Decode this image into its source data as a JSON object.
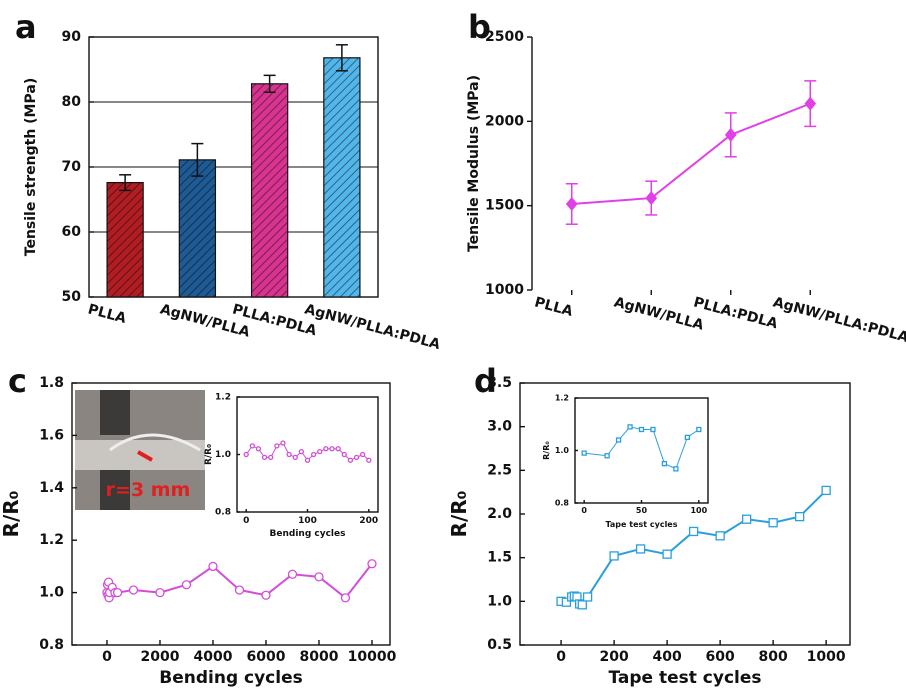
{
  "chart_data": [
    {
      "type": "bar",
      "panel_label": "a",
      "ylabel": "Tensile strength (MPa)",
      "categories": [
        "PLLA",
        "AgNW/PLLA",
        "PLLA:PDLA",
        "AgNW/PLLA:PDLA"
      ],
      "values": [
        67.6,
        71.1,
        82.8,
        86.8
      ],
      "errors": [
        1.2,
        2.5,
        1.3,
        2.0
      ],
      "colors": [
        "#b01e23",
        "#1e5a94",
        "#d8348f",
        "#52b6ea"
      ],
      "ylim": [
        50,
        90
      ],
      "yticks": [
        50,
        60,
        70,
        80,
        90
      ],
      "grid": true
    },
    {
      "type": "line",
      "panel_label": "b",
      "ylabel": "Tensile Modulus (MPa)",
      "categories": [
        "PLLA",
        "AgNW/PLLA",
        "PLLA:PDLA",
        "AgNW/PLLA:PDLA"
      ],
      "values": [
        1510,
        1545,
        1920,
        2105
      ],
      "errors": [
        120,
        100,
        130,
        135
      ],
      "color": "#e040e6",
      "marker": "diamond",
      "ylim": [
        1000,
        2500
      ],
      "yticks": [
        1000,
        1500,
        2000,
        2500
      ]
    },
    {
      "type": "line",
      "panel_label": "c",
      "ylabel": "R/R₀",
      "xlabel": "Bending cycles",
      "annotation": "r=3 mm",
      "x": [
        0,
        20,
        40,
        60,
        80,
        100,
        200,
        300,
        400,
        1000,
        2000,
        3000,
        4000,
        5000,
        6000,
        7000,
        8000,
        9000,
        10000
      ],
      "values": [
        1.0,
        1.03,
        0.99,
        1.04,
        0.98,
        1.0,
        1.02,
        1.0,
        1.0,
        1.01,
        1.0,
        1.03,
        1.1,
        1.01,
        0.99,
        1.07,
        1.06,
        0.98,
        1.11
      ],
      "color": "#d24ed8",
      "marker": "circle",
      "xlim": [
        -1320,
        10680
      ],
      "xticks": [
        0,
        2000,
        4000,
        6000,
        8000,
        10000
      ],
      "ylim": [
        0.8,
        1.8
      ],
      "yticks": [
        0.8,
        {
          "value": 1,
          "label": "1.0"
        },
        1.2,
        1.4,
        1.6,
        1.8
      ]
    },
    {
      "type": "line",
      "ylabel": "R/R₀",
      "xlabel": "Bending cycles",
      "x": [
        0,
        10,
        20,
        30,
        40,
        50,
        60,
        70,
        80,
        90,
        100,
        110,
        120,
        130,
        140,
        150,
        160,
        170,
        180,
        190,
        200
      ],
      "values": [
        1.0,
        1.03,
        1.02,
        0.99,
        0.99,
        1.03,
        1.04,
        1.0,
        0.99,
        1.01,
        0.98,
        1.0,
        1.01,
        1.02,
        1.02,
        1.02,
        1.0,
        0.98,
        0.99,
        1.0,
        0.98
      ],
      "color": "#d24ed8",
      "marker": "circle",
      "xlim": [
        -15,
        215
      ],
      "xticks": [
        0,
        100,
        200
      ],
      "ylim": [
        0.8,
        1.2
      ],
      "yticks": [
        0.8,
        {
          "value": 1,
          "label": "1.0"
        },
        1.2
      ]
    },
    {
      "type": "line",
      "panel_label": "d",
      "ylabel": "R/R₀",
      "xlabel": "Tape test cycles",
      "x": [
        0,
        20,
        40,
        50,
        60,
        70,
        80,
        100,
        200,
        300,
        400,
        500,
        600,
        700,
        800,
        900,
        1000
      ],
      "values": [
        1.0,
        0.99,
        1.05,
        1.06,
        1.05,
        0.97,
        0.96,
        1.05,
        1.52,
        1.6,
        1.54,
        1.8,
        1.75,
        1.94,
        1.9,
        1.97,
        2.27
      ],
      "color": "#2a9fdc",
      "marker": "square",
      "xlim": [
        -155,
        1090
      ],
      "xticks": [
        0,
        200,
        400,
        600,
        800,
        1000
      ],
      "ylim": [
        0.5,
        3.5
      ],
      "yticks": [
        0.5,
        {
          "value": 1,
          "label": "1.0"
        },
        1.5,
        {
          "value": 2,
          "label": "2.0"
        },
        2.5,
        {
          "value": 3,
          "label": "3.0"
        },
        3.5
      ]
    },
    {
      "type": "line",
      "ylabel": "R/R₀",
      "xlabel": "Tape test cycles",
      "x": [
        0,
        20,
        30,
        40,
        50,
        60,
        70,
        80,
        90,
        100
      ],
      "values": [
        0.99,
        0.98,
        1.04,
        1.09,
        1.08,
        1.08,
        0.95,
        0.93,
        1.05,
        1.08
      ],
      "color": "#2a9fdc",
      "marker": "square",
      "xlim": [
        -8,
        108
      ],
      "xticks": [
        0,
        50,
        100
      ],
      "ylim": [
        0.8,
        1.2
      ],
      "yticks": [
        0.8,
        {
          "value": 1,
          "label": "1.0"
        },
        1.2
      ]
    }
  ]
}
